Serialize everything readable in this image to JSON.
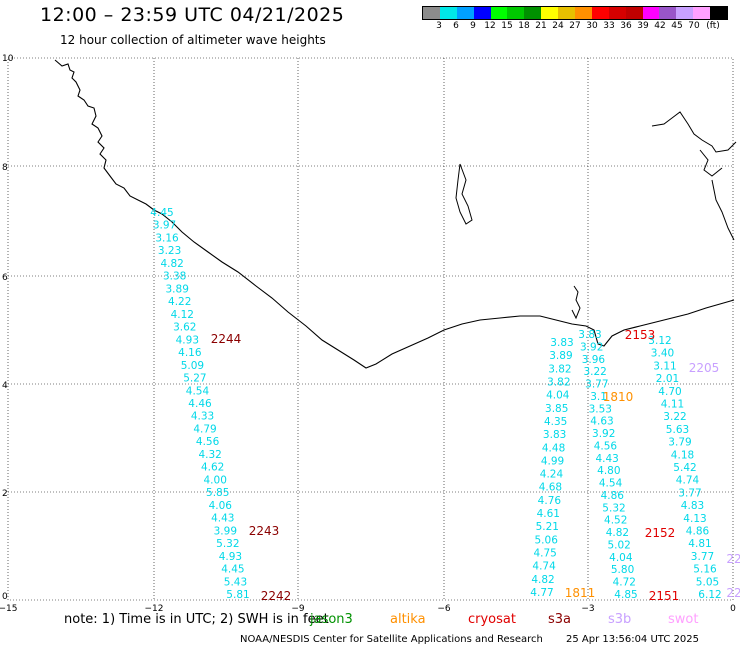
{
  "header": {
    "title": "12:00 – 23:59 UTC 04/21/2025",
    "subtitle": "12 hour collection of altimeter wave heights"
  },
  "colorbar": {
    "colors": [
      "#8c8c8c",
      "#00e8e8",
      "#00a0ff",
      "#0000ff",
      "#00ff00",
      "#00c800",
      "#009100",
      "#ffff00",
      "#e7c000",
      "#ff9000",
      "#ff0000",
      "#d60000",
      "#c00000",
      "#ff00ff",
      "#9955c9",
      "#c8a0ff",
      "#ffa0ff",
      "#000000"
    ],
    "labels": [
      "3",
      "6",
      "9",
      "12",
      "15",
      "18",
      "21",
      "24",
      "27",
      "30",
      "33",
      "36",
      "39",
      "42",
      "45",
      "70",
      "(ft)"
    ]
  },
  "axes": {
    "y_ticks": [
      "10",
      "8",
      "6",
      "4",
      "2",
      "0"
    ],
    "x_ticks": [
      "−15",
      "−12",
      "−9",
      "−6",
      "−3",
      "0"
    ]
  },
  "tracks": [
    {
      "name": "track-a",
      "color": "#00d8e8",
      "values": [
        "4.45",
        "3.97",
        "3.16",
        "3.23",
        "4.82",
        "3.38",
        "3.89",
        "4.22",
        "4.12",
        "3.62",
        "4.93",
        "4.16",
        "5.09",
        "5.27",
        "4.54",
        "4.46",
        "4.33",
        "4.79",
        "4.56",
        "4.32",
        "4.62",
        "4.00",
        "5.85",
        "4.06",
        "4.43",
        "3.99",
        "5.32",
        "4.93",
        "4.45",
        "5.43",
        "5.81"
      ]
    },
    {
      "name": "track-b",
      "color": "#00d8e8",
      "values": [
        "3.83",
        "3.89",
        "3.82",
        "3.82",
        "4.04",
        "3.85",
        "4.35",
        "3.83",
        "4.48",
        "4.99",
        "4.24",
        "4.68",
        "4.76",
        "4.61",
        "5.21",
        "5.06",
        "4.75",
        "4.74",
        "4.82",
        "4.77"
      ]
    },
    {
      "name": "track-c",
      "color": "#00d8e8",
      "values": [
        "3.83",
        "3.92",
        "3.96",
        "3.22",
        "3.77",
        "3.1",
        "3.53",
        "4.63",
        "3.92",
        "4.56",
        "4.43",
        "4.80",
        "4.54",
        "4.86",
        "5.32",
        "4.52",
        "4.82",
        "5.02",
        "4.04",
        "5.80",
        "4.72",
        "4.85"
      ]
    },
    {
      "name": "track-d",
      "color": "#00d8e8",
      "values": [
        "3.12",
        "3.40",
        "3.11",
        "2.01",
        "4.70",
        "4.11",
        "3.22",
        "5.63",
        "3.79",
        "4.18",
        "5.42",
        "4.74",
        "3.77",
        "4.83",
        "4.13",
        "4.86",
        "4.81",
        "3.77",
        "5.16",
        "5.05",
        "6.12"
      ]
    }
  ],
  "pass_labels": [
    {
      "text": "2244",
      "color": "#8b0000"
    },
    {
      "text": "2243",
      "color": "#8b0000"
    },
    {
      "text": "2242",
      "color": "#8b0000"
    },
    {
      "text": "2153",
      "color": "#e00000"
    },
    {
      "text": "2152",
      "color": "#e00000"
    },
    {
      "text": "2151",
      "color": "#e00000"
    },
    {
      "text": "1810",
      "color": "#ff9000"
    },
    {
      "text": "1811",
      "color": "#ff9000"
    },
    {
      "text": "2205",
      "color": "#c8a0ff"
    },
    {
      "text": "22",
      "color": "#c8a0ff"
    },
    {
      "text": "22",
      "color": "#c8a0ff"
    }
  ],
  "note": "note:  1) Time is in UTC;  2) SWH is in feet",
  "legend": [
    {
      "text": "jason3",
      "color": "#009100"
    },
    {
      "text": "altika",
      "color": "#ff9000"
    },
    {
      "text": "cryosat",
      "color": "#e00000"
    },
    {
      "text": "s3a",
      "color": "#8b0000"
    },
    {
      "text": "s3b",
      "color": "#c8a0ff"
    },
    {
      "text": "swot",
      "color": "#ffa0ff"
    }
  ],
  "footer": {
    "credit": "NOAA/NESDIS Center for Satellite Applications and Research",
    "stamp": "25 Apr 13:56:04 UTC 2025"
  }
}
